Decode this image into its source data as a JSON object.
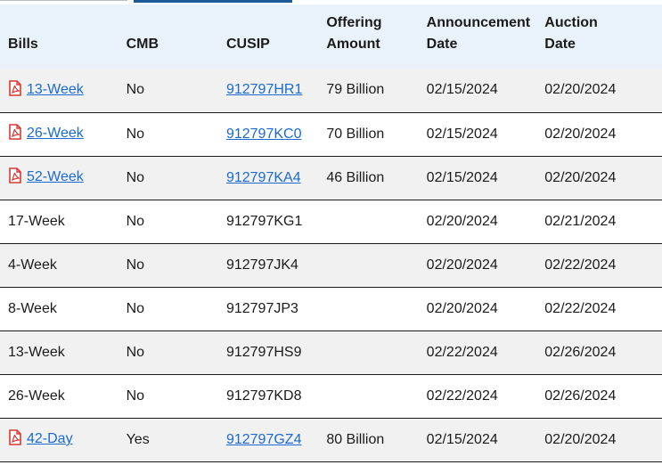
{
  "header": {
    "bills": "Bills",
    "cmb": "CMB",
    "cusip": "CUSIP",
    "offering_line1": "Offering",
    "offering_line2": "Amount",
    "announcement_line1": "Announcement",
    "announcement_line2": "Date",
    "auction_line1": "Auction",
    "auction_line2": "Date"
  },
  "rows": [
    {
      "bill": "13-Week",
      "cmb": "No",
      "cusip": "912797HR1",
      "offering": "79 Billion",
      "announcement": "02/15/2024",
      "auction": "02/20/2024",
      "linked": true
    },
    {
      "bill": "26-Week",
      "cmb": "No",
      "cusip": "912797KC0",
      "offering": "70 Billion",
      "announcement": "02/15/2024",
      "auction": "02/20/2024",
      "linked": true
    },
    {
      "bill": "52-Week",
      "cmb": "No",
      "cusip": "912797KA4",
      "offering": "46 Billion",
      "announcement": "02/15/2024",
      "auction": "02/20/2024",
      "linked": true
    },
    {
      "bill": "17-Week",
      "cmb": "No",
      "cusip": "912797KG1",
      "offering": "",
      "announcement": "02/20/2024",
      "auction": "02/21/2024",
      "linked": false
    },
    {
      "bill": "4-Week",
      "cmb": "No",
      "cusip": "912797JK4",
      "offering": "",
      "announcement": "02/20/2024",
      "auction": "02/22/2024",
      "linked": false
    },
    {
      "bill": "8-Week",
      "cmb": "No",
      "cusip": "912797JP3",
      "offering": "",
      "announcement": "02/20/2024",
      "auction": "02/22/2024",
      "linked": false
    },
    {
      "bill": "13-Week",
      "cmb": "No",
      "cusip": "912797HS9",
      "offering": "",
      "announcement": "02/22/2024",
      "auction": "02/26/2024",
      "linked": false
    },
    {
      "bill": "26-Week",
      "cmb": "No",
      "cusip": "912797KD8",
      "offering": "",
      "announcement": "02/22/2024",
      "auction": "02/26/2024",
      "linked": false
    },
    {
      "bill": "42-Day",
      "cmb": "Yes",
      "cusip": "912797GZ4",
      "offering": "80 Billion",
      "announcement": "02/15/2024",
      "auction": "02/20/2024",
      "linked": true
    }
  ],
  "colors": {
    "header_bg": "#e9f2fb",
    "link": "#1a6ad1",
    "pdf_icon": "#d83933",
    "stripe": "#f1f1f1",
    "active_tab": "#1a5a96"
  },
  "icons": {
    "document": "pdf-icon"
  }
}
